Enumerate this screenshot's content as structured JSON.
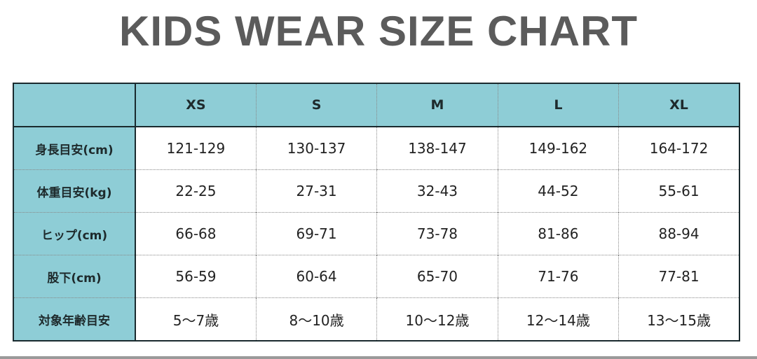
{
  "title": "KIDS WEAR SIZE CHART",
  "colors": {
    "header_bg": "#8ecdd6",
    "title": "#5b5b5b",
    "border": "#1a2a2e"
  },
  "table": {
    "columns": [
      "XS",
      "S",
      "M",
      "L",
      "XL"
    ],
    "rows": [
      {
        "label": "身長目安(cm)",
        "values": [
          "121-129",
          "130-137",
          "138-147",
          "149-162",
          "164-172"
        ]
      },
      {
        "label": "体重目安(kg)",
        "values": [
          "22-25",
          "27-31",
          "32-43",
          "44-52",
          "55-61"
        ]
      },
      {
        "label": "ヒップ(cm)",
        "values": [
          "66-68",
          "69-71",
          "73-78",
          "81-86",
          "88-94"
        ]
      },
      {
        "label": "股下(cm)",
        "values": [
          "56-59",
          "60-64",
          "65-70",
          "71-76",
          "77-81"
        ]
      },
      {
        "label": "対象年齢目安",
        "values": [
          "5〜7歳",
          "8〜10歳",
          "10〜12歳",
          "12〜14歳",
          "13〜15歳"
        ]
      }
    ]
  }
}
